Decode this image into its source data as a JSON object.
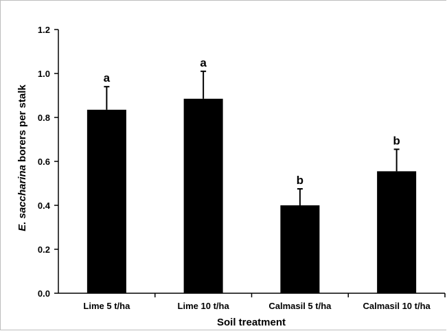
{
  "chart_data": {
    "type": "bar",
    "categories": [
      "Lime 5 t/ha",
      "Lime 10 t/ha",
      "Calmasil 5 t/ha",
      "Calmasil 10 t/ha"
    ],
    "values": [
      0.835,
      0.885,
      0.4,
      0.555
    ],
    "error_upper": [
      0.94,
      1.01,
      0.475,
      0.655
    ],
    "significance_letters": [
      "a",
      "a",
      "b",
      "b"
    ],
    "xlabel": "Soil treatment",
    "ylabel_italic": "E. saccharina",
    "ylabel_rest": " borers per stalk",
    "ylim": [
      0,
      1.2
    ],
    "yticks": [
      0.0,
      0.2,
      0.4,
      0.6,
      0.8,
      1.0,
      1.2
    ],
    "ytick_labels": [
      "0.0",
      "0.2",
      "0.4",
      "0.6",
      "0.8",
      "1.0",
      "1.2"
    ],
    "grid": false,
    "bar_color": "#000000"
  }
}
